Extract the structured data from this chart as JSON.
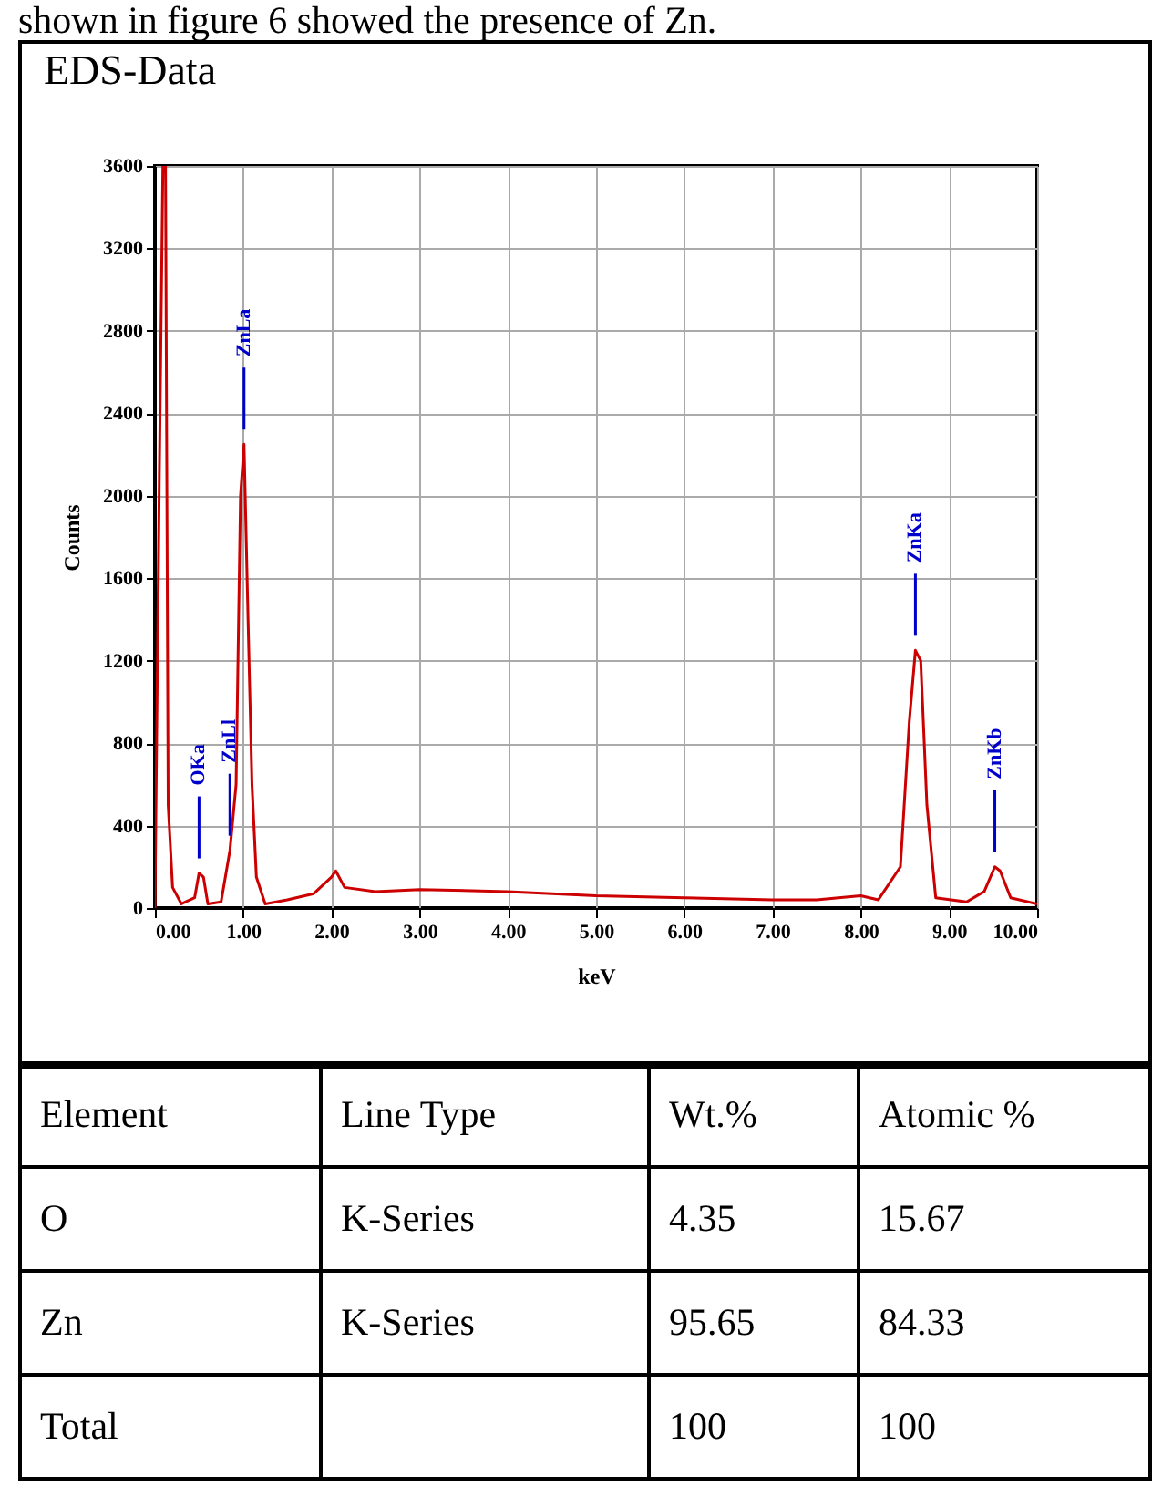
{
  "chart_data": [
    {
      "type": "line",
      "title": "EDS-Data",
      "xlabel": "keV",
      "ylabel": "Counts",
      "color": "#cc0000",
      "grid": true,
      "xlim": [
        0,
        10
      ],
      "ylim": [
        0,
        3600
      ],
      "xticks": [
        {
          "value": 0,
          "label": "0.00"
        },
        {
          "value": 1,
          "label": "1.00"
        },
        {
          "value": 2,
          "label": "2.00"
        },
        {
          "value": 3,
          "label": "3.00"
        },
        {
          "value": 4,
          "label": "4.00"
        },
        {
          "value": 5,
          "label": "5.00"
        },
        {
          "value": 6,
          "label": "6.00"
        },
        {
          "value": 7,
          "label": "7.00"
        },
        {
          "value": 8,
          "label": "8.00"
        },
        {
          "value": 9,
          "label": "9.00"
        },
        {
          "value": 10,
          "label": "10.00"
        }
      ],
      "yticks": [
        0,
        400,
        800,
        1200,
        1600,
        2000,
        2400,
        2800,
        3200,
        3600
      ],
      "x": [
        0,
        0.05,
        0.09,
        0.12,
        0.15,
        0.2,
        0.3,
        0.45,
        0.5,
        0.55,
        0.6,
        0.75,
        0.85,
        0.92,
        0.97,
        1.01,
        1.05,
        1.1,
        1.15,
        1.25,
        1.5,
        1.8,
        2.0,
        2.05,
        2.15,
        2.5,
        3.0,
        4.0,
        5.0,
        6.0,
        7.0,
        7.5,
        8.0,
        8.2,
        8.45,
        8.55,
        8.62,
        8.68,
        8.75,
        8.85,
        9.2,
        9.4,
        9.52,
        9.58,
        9.7,
        10.0
      ],
      "values": [
        0,
        2100,
        3600,
        3600,
        500,
        100,
        20,
        50,
        170,
        150,
        20,
        30,
        280,
        600,
        2000,
        2250,
        1500,
        600,
        150,
        20,
        40,
        70,
        150,
        180,
        100,
        80,
        90,
        80,
        60,
        50,
        40,
        40,
        60,
        40,
        200,
        900,
        1250,
        1200,
        500,
        50,
        30,
        80,
        200,
        180,
        50,
        20
      ],
      "annotations": [
        "shown in figure 6 showed the presence of Zn.",
        {
          "text": "OKa",
          "x": 0.5,
          "y": 170
        },
        {
          "text": "ZnLl",
          "x": 0.85,
          "y": 280
        },
        {
          "text": "ZnLa",
          "x": 1.01,
          "y": 2250
        },
        {
          "text": "ZnKa",
          "x": 8.62,
          "y": 1250
        },
        {
          "text": "ZnKb",
          "x": 9.52,
          "y": 200
        }
      ]
    },
    {
      "type": "other",
      "categories": [
        "Element",
        "Line Type",
        "Wt.%",
        "Atomic %"
      ],
      "cell_labels": [
        [
          "O",
          "K-Series",
          "4.35",
          "15.67"
        ],
        [
          "Zn",
          "K-Series",
          "95.65",
          "84.33"
        ],
        [
          "Total",
          null,
          "100",
          "100"
        ]
      ]
    }
  ]
}
